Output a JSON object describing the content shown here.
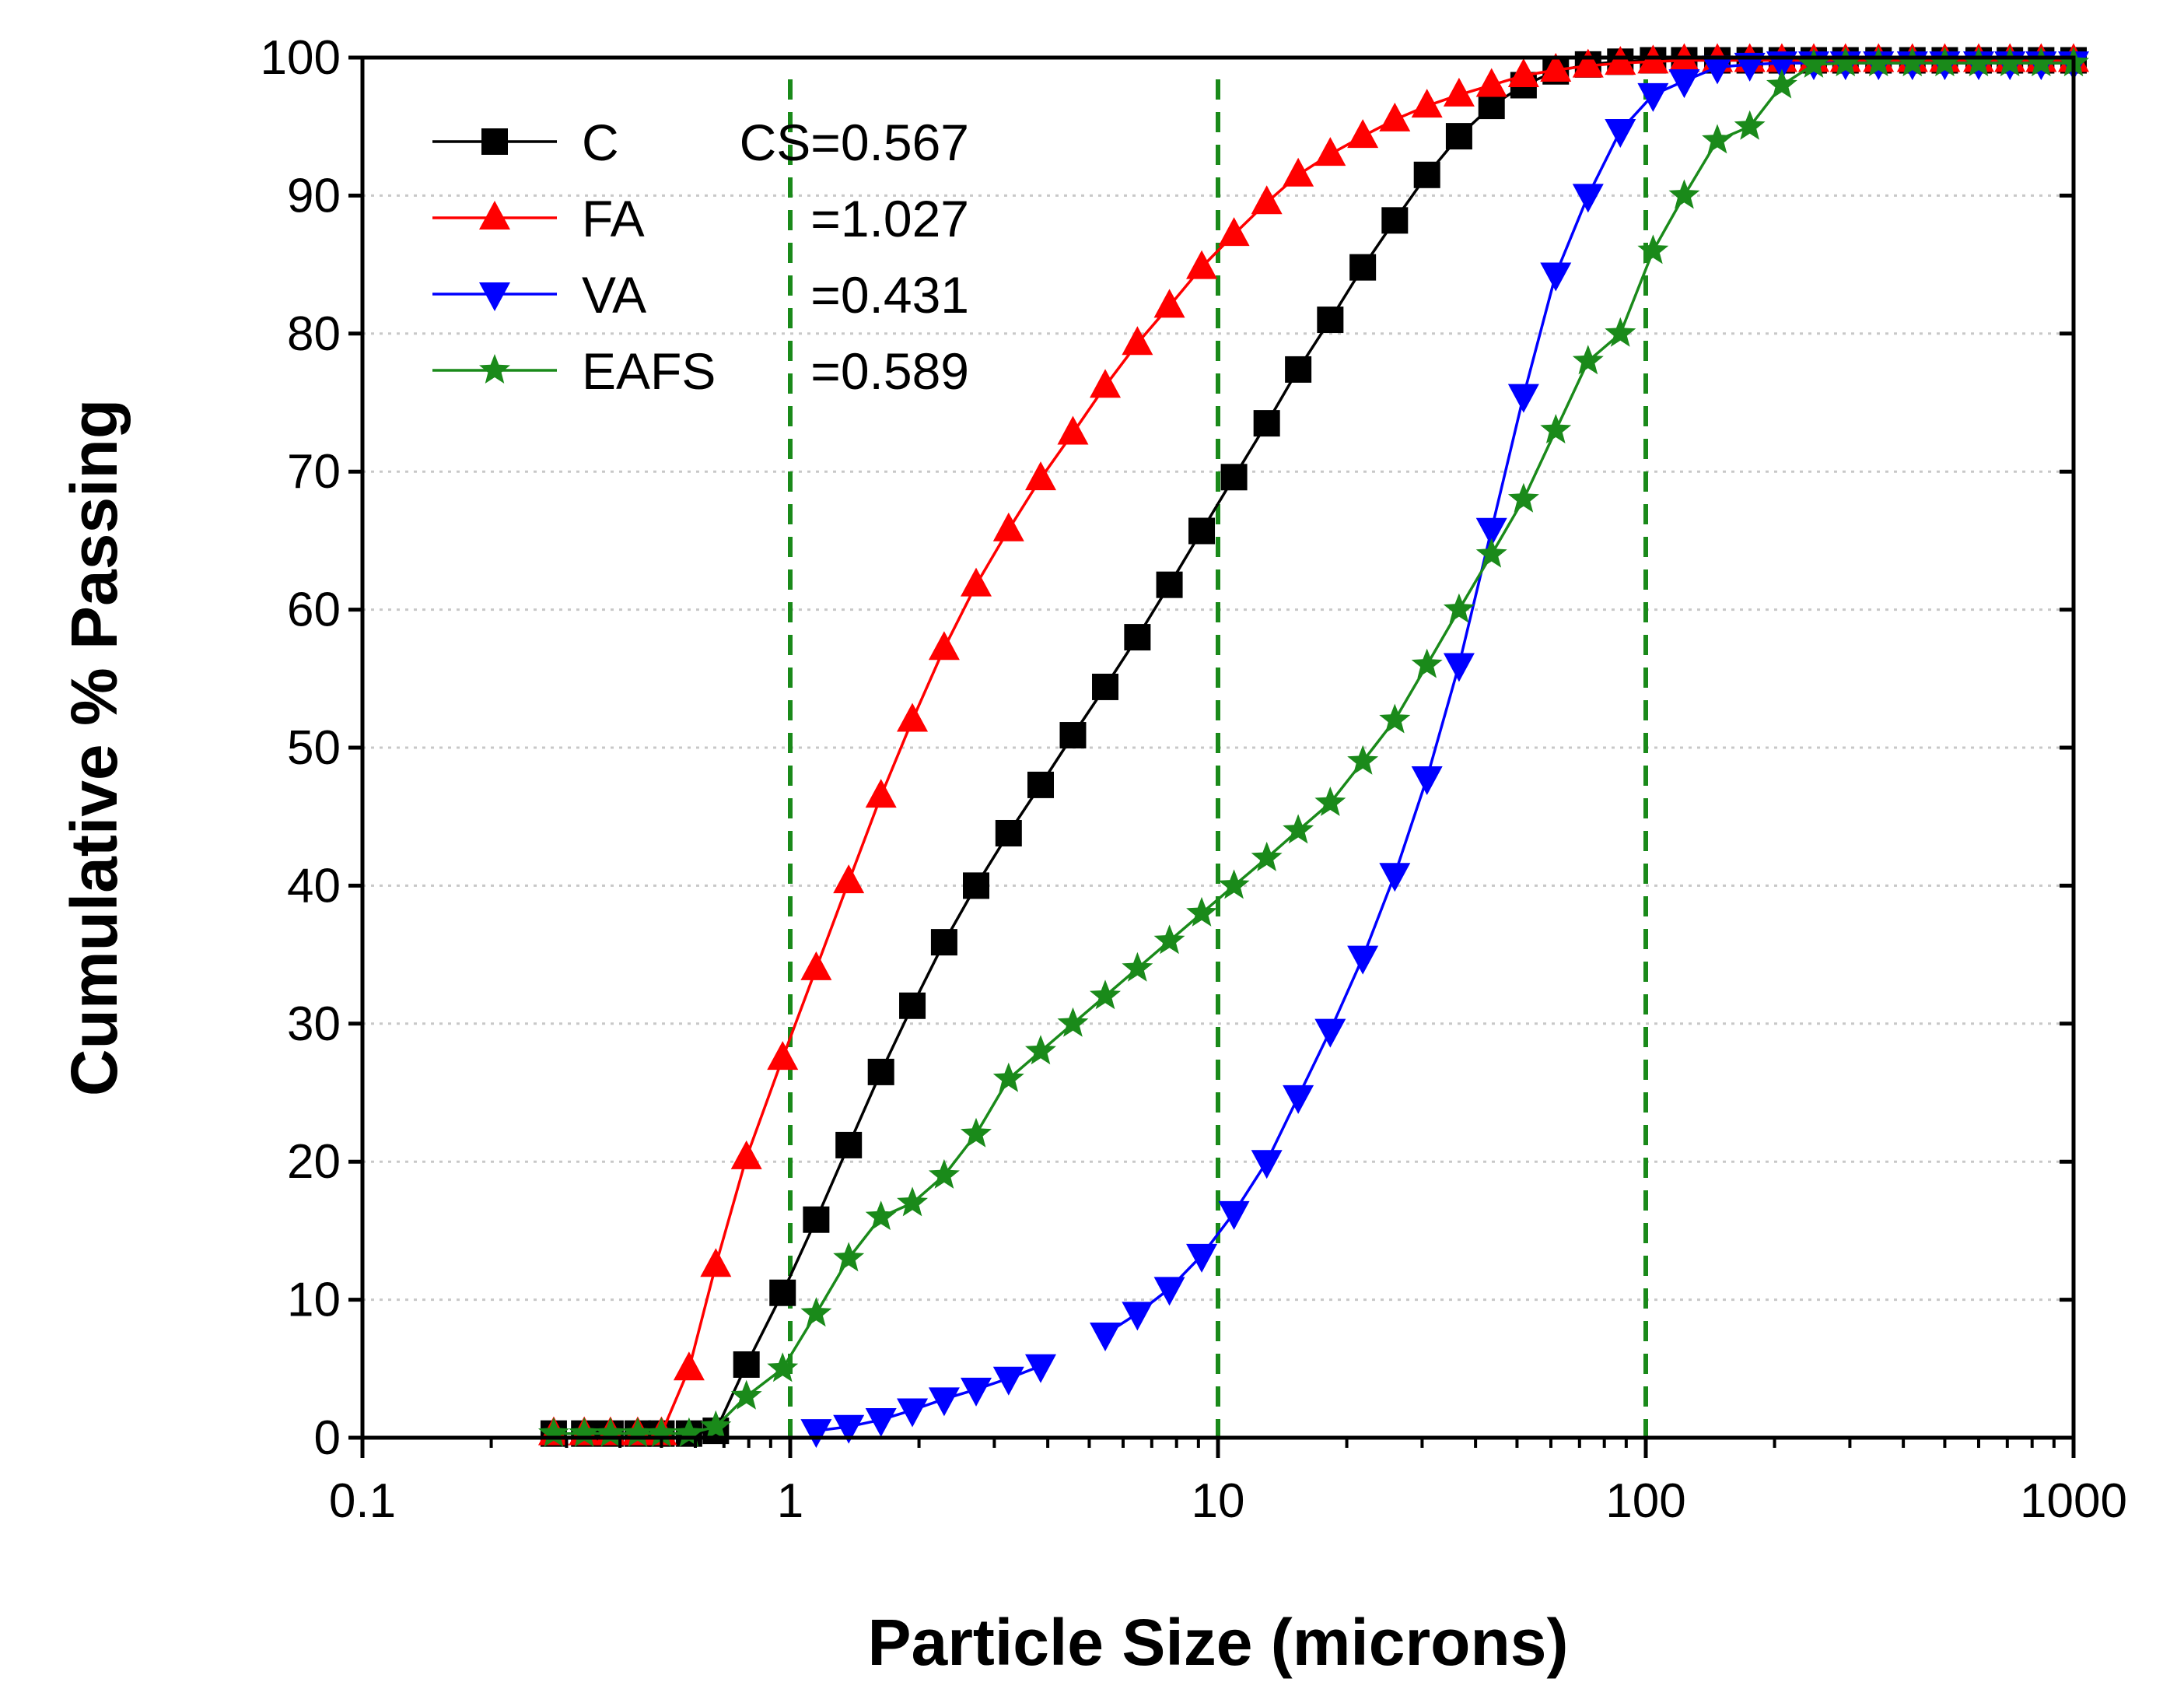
{
  "chart_data": {
    "type": "line",
    "xscale": "log",
    "xlabel": "Particle Size (microns)",
    "ylabel": "Cumulative % Passing",
    "xlim": [
      0.1,
      1000
    ],
    "ylim": [
      0,
      100
    ],
    "xticks": [
      0.1,
      1,
      10,
      100,
      1000
    ],
    "xtick_labels": [
      "0.1",
      "1",
      "10",
      "100",
      "1000"
    ],
    "yticks": [
      0,
      10,
      20,
      30,
      40,
      50,
      60,
      70,
      80,
      90,
      100
    ],
    "ytick_labels": [
      "0",
      "10",
      "20",
      "30",
      "40",
      "50",
      "60",
      "70",
      "80",
      "90",
      "100"
    ],
    "reference_lines_x": [
      1,
      10,
      100
    ],
    "reference_line_color": "#1a8a1a",
    "grid": "horizontal dotted",
    "legend_position": "top-left",
    "series": [
      {
        "name": "C",
        "cs_label": "CS=0.567",
        "color": "#000000",
        "marker": "square",
        "x": [
          0.28,
          0.33,
          0.38,
          0.44,
          0.5,
          0.58,
          0.67,
          0.79,
          0.96,
          1.15,
          1.37,
          1.63,
          1.93,
          2.29,
          2.72,
          3.24,
          3.85,
          4.58,
          5.45,
          6.48,
          7.7,
          9.16,
          10.9,
          13.0,
          15.4,
          18.3,
          21.8,
          25.9,
          30.8,
          36.6,
          43.6,
          51.8,
          61.6,
          73.3,
          87.2,
          104,
          123,
          147,
          175,
          208,
          247,
          293,
          350,
          420,
          500,
          600,
          710,
          840,
          1000
        ],
        "y": [
          0.3,
          0.3,
          0.3,
          0.3,
          0.3,
          0.3,
          0.5,
          5.3,
          10.5,
          15.8,
          21.2,
          26.5,
          31.3,
          35.9,
          40.0,
          43.8,
          47.3,
          50.9,
          54.4,
          58.0,
          61.8,
          65.7,
          69.6,
          73.5,
          77.4,
          81.0,
          84.8,
          88.2,
          91.5,
          94.3,
          96.5,
          98.0,
          99.0,
          99.5,
          99.7,
          99.8,
          99.8,
          99.8,
          99.8,
          99.8,
          99.8,
          99.8,
          99.8,
          99.8,
          99.8,
          99.8,
          99.8,
          99.8,
          99.8
        ]
      },
      {
        "name": "FA",
        "cs_label": "=1.027",
        "color": "#ff0000",
        "marker": "triangle-up",
        "x": [
          0.28,
          0.33,
          0.38,
          0.44,
          0.5,
          0.58,
          0.67,
          0.79,
          0.96,
          1.15,
          1.37,
          1.63,
          1.93,
          2.29,
          2.72,
          3.24,
          3.85,
          4.58,
          5.45,
          6.48,
          7.7,
          9.16,
          10.9,
          13.0,
          15.4,
          18.3,
          21.8,
          25.9,
          30.8,
          36.6,
          43.6,
          51.8,
          61.6,
          73.3,
          87.2,
          104,
          123,
          147,
          175,
          208,
          247,
          293,
          350,
          420,
          500,
          600,
          710,
          840,
          1000
        ],
        "y": [
          0.3,
          0.3,
          0.3,
          0.3,
          0.3,
          5.0,
          12.5,
          20.3,
          27.5,
          34.0,
          40.3,
          46.5,
          52.0,
          57.2,
          61.8,
          65.8,
          69.5,
          72.8,
          76.2,
          79.3,
          82.0,
          84.8,
          87.2,
          89.5,
          91.5,
          93.0,
          94.3,
          95.5,
          96.5,
          97.3,
          98.0,
          98.7,
          99.1,
          99.4,
          99.6,
          99.7,
          99.8,
          99.8,
          99.8,
          99.8,
          99.8,
          99.8,
          99.8,
          99.8,
          99.8,
          99.8,
          99.8,
          99.8,
          99.8
        ]
      },
      {
        "name": "VA",
        "cs_label": "=0.431",
        "color": "#0000ff",
        "marker": "triangle-down",
        "x": [
          1.15,
          1.37,
          1.63,
          1.93,
          2.29,
          2.72,
          3.24,
          3.85,
          null,
          5.45,
          6.48,
          7.7,
          9.16,
          10.9,
          13.0,
          15.4,
          18.3,
          21.8,
          25.9,
          30.8,
          36.6,
          43.6,
          51.8,
          61.6,
          73.3,
          87.2,
          104,
          123,
          147,
          175,
          208,
          247,
          293,
          350,
          420,
          500,
          600,
          710,
          840,
          1000
        ],
        "y": [
          0.5,
          0.8,
          1.3,
          2.0,
          2.8,
          3.5,
          4.3,
          5.2,
          null,
          7.5,
          9.0,
          10.8,
          13.2,
          16.3,
          20.0,
          24.7,
          29.5,
          34.8,
          40.8,
          47.8,
          56.0,
          65.8,
          75.5,
          84.3,
          90.0,
          94.7,
          97.3,
          98.3,
          99.3,
          99.5,
          99.6,
          99.6,
          99.6,
          99.6,
          99.6,
          99.6,
          99.6,
          99.6,
          99.6,
          99.6
        ]
      },
      {
        "name": "EAFS",
        "cs_label": "=0.589",
        "color": "#1a8a1a",
        "marker": "star",
        "x": [
          0.28,
          0.33,
          0.38,
          0.44,
          0.5,
          0.58,
          0.67,
          0.79,
          0.96,
          1.15,
          1.37,
          1.63,
          1.93,
          2.29,
          2.72,
          3.24,
          3.85,
          4.58,
          5.45,
          6.48,
          7.7,
          9.16,
          10.9,
          13.0,
          15.4,
          18.3,
          21.8,
          25.9,
          30.8,
          36.6,
          43.6,
          51.8,
          61.6,
          73.3,
          87.2,
          104,
          123,
          147,
          175,
          208,
          247,
          293,
          350,
          420,
          500,
          600,
          710,
          840,
          1000
        ],
        "y": [
          0.3,
          0.3,
          0.3,
          0.3,
          0.3,
          0.3,
          0.8,
          3.0,
          5.0,
          9.0,
          13.0,
          16.0,
          17.0,
          19.0,
          22.0,
          26.0,
          28.0,
          30.0,
          32.0,
          34.0,
          36.0,
          38.0,
          40.0,
          42.0,
          44.0,
          46.0,
          49.0,
          52.0,
          56.0,
          60.0,
          64.0,
          68.0,
          73.0,
          78.0,
          80.0,
          86.0,
          90.0,
          94.0,
          95.0,
          98.0,
          99.5,
          99.6,
          99.6,
          99.6,
          99.6,
          99.6,
          99.6,
          99.6,
          99.6
        ]
      }
    ]
  }
}
